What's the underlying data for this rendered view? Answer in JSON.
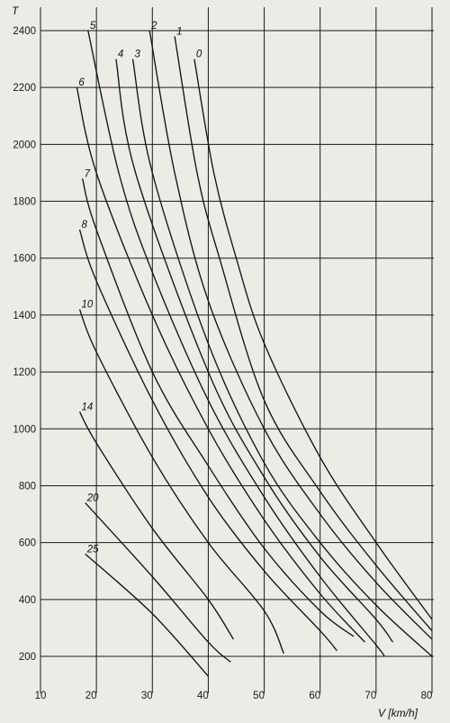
{
  "chart_data": {
    "type": "line",
    "title": "",
    "xlabel": "V [km/h]",
    "ylabel": "T",
    "xlim": [
      10,
      80
    ],
    "ylim": [
      100,
      2450
    ],
    "x_ticks": [
      "10",
      "20",
      "30",
      "40",
      "50",
      "60",
      "70",
      "80"
    ],
    "y_ticks": [
      "200",
      "400",
      "600",
      "800",
      "1000",
      "1200",
      "1400",
      "1600",
      "1800",
      "2000",
      "2200",
      "2400"
    ],
    "grid": true,
    "legend": "none (curves labelled at their upper ends)",
    "series": [
      {
        "name": "0",
        "points": [
          [
            37.5,
            2300
          ],
          [
            41,
            1900
          ],
          [
            45,
            1600
          ],
          [
            50,
            1300
          ],
          [
            60,
            900
          ],
          [
            70,
            600
          ],
          [
            80,
            330
          ]
        ]
      },
      {
        "name": "1",
        "points": [
          [
            34,
            2380
          ],
          [
            38,
            1900
          ],
          [
            42,
            1600
          ],
          [
            50,
            1100
          ],
          [
            60,
            780
          ],
          [
            70,
            520
          ],
          [
            80,
            290
          ]
        ]
      },
      {
        "name": "2",
        "points": [
          [
            29.5,
            2400
          ],
          [
            34,
            1900
          ],
          [
            40,
            1450
          ],
          [
            50,
            1000
          ],
          [
            60,
            700
          ],
          [
            70,
            460
          ],
          [
            80,
            260
          ]
        ]
      },
      {
        "name": "3",
        "points": [
          [
            26.5,
            2300
          ],
          [
            30,
            1900
          ],
          [
            40,
            1300
          ],
          [
            50,
            880
          ],
          [
            60,
            600
          ],
          [
            70,
            380
          ],
          [
            80,
            200
          ]
        ]
      },
      {
        "name": "4",
        "points": [
          [
            23.5,
            2300
          ],
          [
            27,
            1900
          ],
          [
            40,
            1200
          ],
          [
            50,
            830
          ],
          [
            60,
            550
          ],
          [
            70,
            330
          ],
          [
            73,
            250
          ]
        ]
      },
      {
        "name": "5",
        "points": [
          [
            18.5,
            2400
          ],
          [
            24,
            1900
          ],
          [
            30,
            1550
          ],
          [
            40,
            1100
          ],
          [
            50,
            760
          ],
          [
            60,
            480
          ],
          [
            70,
            240
          ],
          [
            71.5,
            200
          ]
        ]
      },
      {
        "name": "6",
        "points": [
          [
            16.5,
            2200
          ],
          [
            20,
            1900
          ],
          [
            30,
            1400
          ],
          [
            40,
            1000
          ],
          [
            50,
            680
          ],
          [
            60,
            420
          ],
          [
            68,
            250
          ]
        ]
      },
      {
        "name": "7",
        "points": [
          [
            17.5,
            1880
          ],
          [
            20,
            1700
          ],
          [
            30,
            1200
          ],
          [
            40,
            870
          ],
          [
            50,
            580
          ],
          [
            60,
            360
          ],
          [
            66,
            270
          ]
        ]
      },
      {
        "name": "8",
        "points": [
          [
            17,
            1700
          ],
          [
            20,
            1520
          ],
          [
            30,
            1100
          ],
          [
            40,
            760
          ],
          [
            50,
            500
          ],
          [
            60,
            290
          ],
          [
            63,
            220
          ]
        ]
      },
      {
        "name": "10",
        "points": [
          [
            17,
            1420
          ],
          [
            20,
            1270
          ],
          [
            30,
            900
          ],
          [
            40,
            600
          ],
          [
            50,
            360
          ],
          [
            53.5,
            210
          ]
        ]
      },
      {
        "name": "14",
        "points": [
          [
            17,
            1060
          ],
          [
            20,
            950
          ],
          [
            30,
            650
          ],
          [
            40,
            400
          ],
          [
            44.5,
            260
          ]
        ]
      },
      {
        "name": "20",
        "points": [
          [
            18,
            740
          ],
          [
            30,
            480
          ],
          [
            40,
            250
          ],
          [
            44,
            180
          ]
        ]
      },
      {
        "name": "25",
        "points": [
          [
            18,
            560
          ],
          [
            30,
            350
          ],
          [
            40,
            130
          ]
        ]
      }
    ]
  }
}
